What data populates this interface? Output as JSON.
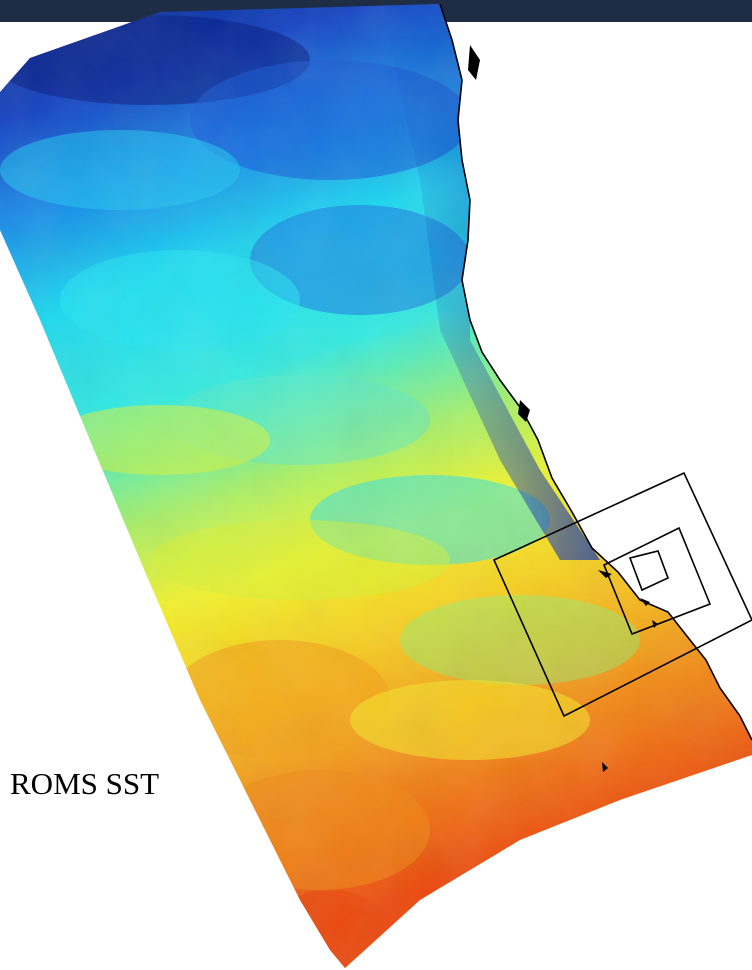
{
  "map": {
    "label": "ROMS SST",
    "colors": {
      "cold": "#0a2a9a",
      "cool": "#1a86e6",
      "aqua": "#1ee6f0",
      "warm": "#f2f02a",
      "hot": "#ee5a12",
      "frame_bar": "#1f2d44"
    }
  }
}
